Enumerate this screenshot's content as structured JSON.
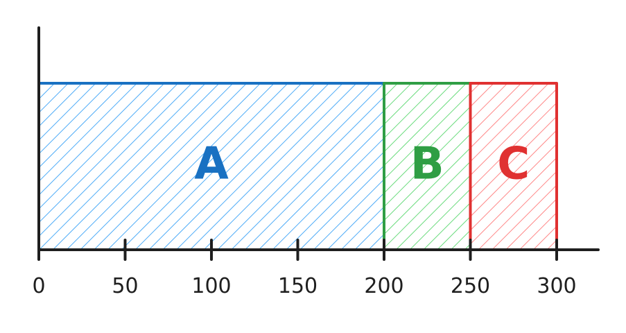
{
  "chart_data": {
    "type": "bar",
    "orientation": "horizontal-stacked",
    "title": "",
    "xlabel": "",
    "ylabel": "",
    "xlim": [
      0,
      325
    ],
    "x_ticks": [
      0,
      50,
      100,
      150,
      200,
      250,
      300
    ],
    "x_tick_labels": [
      "0",
      "50",
      "100",
      "150",
      "200",
      "250",
      "300"
    ],
    "grid": false,
    "legend": "none",
    "segments": [
      {
        "label": "A",
        "start": 0,
        "end": 200,
        "value": 200,
        "stroke": "#1971c2",
        "fill": "#4dabf7"
      },
      {
        "label": "B",
        "start": 200,
        "end": 250,
        "value": 50,
        "stroke": "#2f9e44",
        "fill": "#69db7c"
      },
      {
        "label": "C",
        "start": 250,
        "end": 300,
        "value": 50,
        "stroke": "#e03131",
        "fill": "#ff8787"
      }
    ],
    "axis_color": "#1e1e1e"
  }
}
